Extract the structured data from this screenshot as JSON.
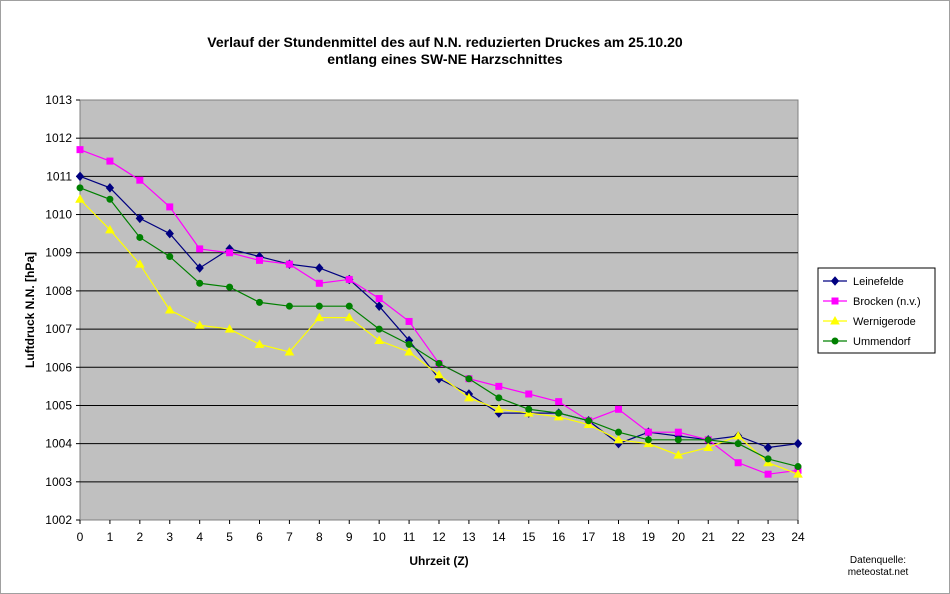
{
  "chart_data": {
    "type": "line",
    "title": "Verlauf der Stundenmittel des auf N.N. reduzierten Druckes  am 25.10.20",
    "subtitle": "entlang eines SW-NE Harzschnittes",
    "xlabel": "Uhrzeit (Z)",
    "ylabel": "Luftdruck N.N. [hPa]",
    "ylim": [
      1002,
      1013
    ],
    "xlim": [
      0,
      24
    ],
    "grid": true,
    "legend_placement": "right",
    "x": [
      0,
      1,
      2,
      3,
      4,
      5,
      6,
      7,
      8,
      9,
      10,
      11,
      12,
      13,
      14,
      15,
      16,
      17,
      18,
      19,
      20,
      21,
      22,
      23,
      24
    ],
    "x_ticks": [
      "0",
      "1",
      "2",
      "3",
      "4",
      "5",
      "6",
      "7",
      "8",
      "9",
      "10",
      "11",
      "12",
      "13",
      "14",
      "15",
      "16",
      "17",
      "18",
      "19",
      "20",
      "21",
      "22",
      "23",
      "24"
    ],
    "y_ticks": [
      "1002",
      "1003",
      "1004",
      "1005",
      "1006",
      "1007",
      "1008",
      "1009",
      "1010",
      "1011",
      "1012",
      "1013"
    ],
    "series": [
      {
        "name": "Leinefelde",
        "color": "#000080",
        "marker": "diamond",
        "values": [
          1011.0,
          1010.7,
          1009.9,
          1009.5,
          1008.6,
          1009.1,
          1008.9,
          1008.7,
          1008.6,
          1008.3,
          1007.6,
          1006.7,
          1005.7,
          1005.3,
          1004.8,
          1004.8,
          1004.8,
          1004.6,
          1004.0,
          1004.3,
          1004.2,
          1004.1,
          1004.2,
          1003.9,
          1004.0
        ]
      },
      {
        "name": "Brocken (n.v.)",
        "color": "#ff00ff",
        "marker": "square",
        "values": [
          1011.7,
          1011.4,
          1010.9,
          1010.2,
          1009.1,
          1009.0,
          1008.8,
          1008.7,
          1008.2,
          1008.3,
          1007.8,
          1007.2,
          1006.1,
          1005.7,
          1005.5,
          1005.3,
          1005.1,
          1004.6,
          1004.9,
          1004.3,
          1004.3,
          1004.1,
          1003.5,
          1003.2,
          1003.3
        ]
      },
      {
        "name": "Wernigerode",
        "color": "#ffff00",
        "marker": "triangle",
        "values": [
          1010.4,
          1009.6,
          1008.7,
          1007.5,
          1007.1,
          1007.0,
          1006.6,
          1006.4,
          1007.3,
          1007.3,
          1006.7,
          1006.4,
          1005.8,
          1005.2,
          1004.9,
          1004.8,
          1004.7,
          1004.5,
          1004.1,
          1004.0,
          1003.7,
          1003.9,
          1004.2,
          1003.5,
          1003.2
        ]
      },
      {
        "name": "Ummendorf",
        "color": "#008000",
        "marker": "circle",
        "values": [
          1010.7,
          1010.4,
          1009.4,
          1008.9,
          1008.2,
          1008.1,
          1007.7,
          1007.6,
          1007.6,
          1007.6,
          1007.0,
          1006.6,
          1006.1,
          1005.7,
          1005.2,
          1004.9,
          1004.8,
          1004.6,
          1004.3,
          1004.1,
          1004.1,
          1004.1,
          1004.0,
          1003.6,
          1003.4
        ]
      }
    ],
    "source_label": "Datenquelle:",
    "source_value": "meteostat.net"
  }
}
